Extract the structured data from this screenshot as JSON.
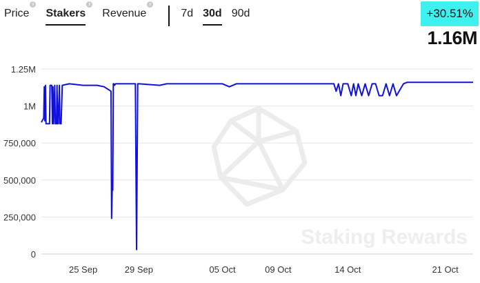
{
  "tabs": [
    {
      "label": "Price",
      "active": false
    },
    {
      "label": "Stakers",
      "active": true
    },
    {
      "label": "Revenue",
      "active": false
    }
  ],
  "ranges": [
    {
      "label": "7d",
      "active": false
    },
    {
      "label": "30d",
      "active": true
    },
    {
      "label": "90d",
      "active": false
    }
  ],
  "change": "+30.51%",
  "current_value": "1.16M",
  "watermark": "Staking Rewards",
  "colors": {
    "line": "#1010e0",
    "badge": "#3ef0ee"
  },
  "chart_data": {
    "type": "line",
    "title": "",
    "xlabel": "",
    "ylabel": "",
    "ylim": [
      0,
      1250000
    ],
    "xlim": [
      "2024-09-22",
      "2024-10-23"
    ],
    "grid": true,
    "y_ticks": [
      {
        "value": 0,
        "label": "0"
      },
      {
        "value": 250000,
        "label": "250,000"
      },
      {
        "value": 500000,
        "label": "500,000"
      },
      {
        "value": 750000,
        "label": "750,000"
      },
      {
        "value": 1000000,
        "label": "1M"
      },
      {
        "value": 1250000,
        "label": "1.25M"
      }
    ],
    "x_ticks": [
      {
        "date": "2024-09-25",
        "label": "25 Sep"
      },
      {
        "date": "2024-09-29",
        "label": "29 Sep"
      },
      {
        "date": "2024-10-05",
        "label": "05 Oct"
      },
      {
        "date": "2024-10-09",
        "label": "09 Oct"
      },
      {
        "date": "2024-10-14",
        "label": "14 Oct"
      },
      {
        "date": "2024-10-21",
        "label": "21 Oct"
      }
    ],
    "series": [
      {
        "x": [
          "2024-09-22 00:00",
          "2024-09-22 04:00",
          "2024-09-22 05:00",
          "2024-09-22 06:00",
          "2024-09-22 07:00",
          "2024-09-22 08:00",
          "2024-09-22 09:00",
          "2024-09-22 10:00",
          "2024-09-22 11:00",
          "2024-09-22 12:00",
          "2024-09-22 14:00",
          "2024-09-22 15:00",
          "2024-09-22 18:00",
          "2024-09-22 19:00",
          "2024-09-22 20:00",
          "2024-09-22 21:00",
          "2024-09-22 23:00",
          "2024-09-23 00:00",
          "2024-09-23 02:00",
          "2024-09-23 03:00",
          "2024-09-23 04:00",
          "2024-09-23 05:00",
          "2024-09-23 07:00",
          "2024-09-23 08:00",
          "2024-09-23 09:00",
          "2024-09-23 10:00",
          "2024-09-23 12:00",
          "2024-09-24 00:00",
          "2024-09-25 00:00",
          "2024-09-26 00:00",
          "2024-09-26 12:00",
          "2024-09-27 00:00",
          "2024-09-27 01:00",
          "2024-09-27 02:00",
          "2024-09-27 03:00",
          "2024-09-27 04:00",
          "2024-09-27 05:00",
          "2024-09-27 06:00",
          "2024-09-27 08:00",
          "2024-09-28 00:00",
          "2024-09-28 12:00",
          "2024-09-28 18:00",
          "2024-09-28 20:00",
          "2024-09-28 22:00",
          "2024-09-29 00:00",
          "2024-09-30 12:00",
          "2024-10-01 00:00",
          "2024-10-03 00:00",
          "2024-10-05 00:00",
          "2024-10-05 12:00",
          "2024-10-06 00:00",
          "2024-10-08 00:00",
          "2024-10-10 00:00",
          "2024-10-12 00:00",
          "2024-10-13 00:00",
          "2024-10-13 04:00",
          "2024-10-13 08:00",
          "2024-10-13 12:00",
          "2024-10-13 16:00",
          "2024-10-14 00:00",
          "2024-10-14 06:00",
          "2024-10-14 10:00",
          "2024-10-14 14:00",
          "2024-10-14 18:00",
          "2024-10-15 00:00",
          "2024-10-15 06:00",
          "2024-10-15 12:00",
          "2024-10-15 18:00",
          "2024-10-16 00:00",
          "2024-10-16 06:00",
          "2024-10-16 12:00",
          "2024-10-16 18:00",
          "2024-10-17 00:00",
          "2024-10-17 06:00",
          "2024-10-17 12:00",
          "2024-10-18 00:00",
          "2024-10-18 06:00",
          "2024-10-18 12:00",
          "2024-10-18 18:00",
          "2024-10-19 00:00",
          "2024-10-19 12:00",
          "2024-10-20 00:00",
          "2024-10-21 00:00",
          "2024-10-22 00:00",
          "2024-10-23 00:00"
        ],
        "y": [
          890000,
          920000,
          1130000,
          900000,
          1140000,
          880000,
          880000,
          880000,
          880000,
          880000,
          880000,
          1140000,
          1140000,
          880000,
          1130000,
          880000,
          1140000,
          880000,
          880000,
          1140000,
          880000,
          880000,
          1140000,
          880000,
          880000,
          880000,
          1140000,
          1150000,
          1140000,
          1140000,
          1130000,
          1100000,
          240000,
          430000,
          430000,
          1150000,
          1150000,
          1140000,
          1150000,
          1150000,
          1150000,
          1150000,
          30000,
          1150000,
          1150000,
          1140000,
          1150000,
          1150000,
          1150000,
          1130000,
          1150000,
          1150000,
          1150000,
          1150000,
          1150000,
          1100000,
          1150000,
          1070000,
          1150000,
          1150000,
          1070000,
          1150000,
          1070000,
          1150000,
          1070000,
          1150000,
          1070000,
          1150000,
          1150000,
          1070000,
          1070000,
          1150000,
          1070000,
          1150000,
          1070000,
          1150000,
          1160000,
          1160000,
          1160000,
          1160000,
          1160000,
          1160000,
          1160000,
          1160000,
          1160000
        ]
      }
    ]
  }
}
